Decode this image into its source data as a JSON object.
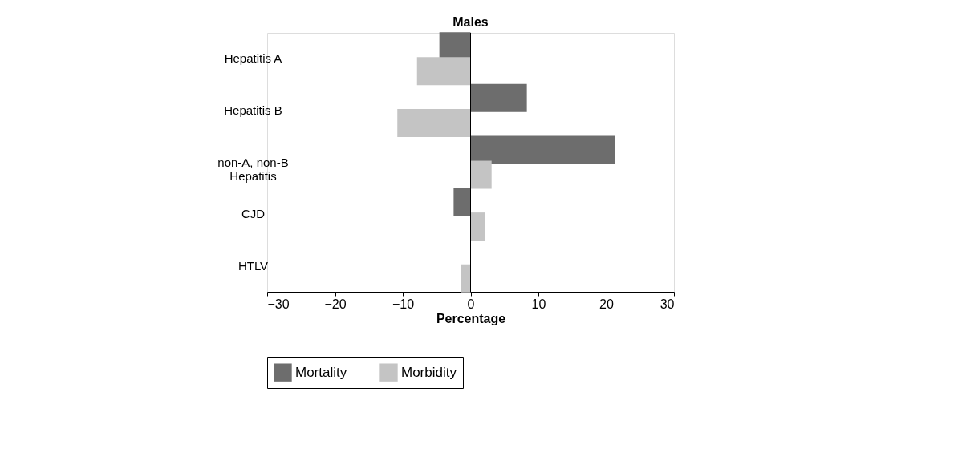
{
  "chart_data": {
    "type": "bar",
    "orientation": "horizontal",
    "title": "Males",
    "xlabel": "Percentage",
    "categories": [
      "Hepatitis A",
      "Hepatitis B",
      "non-A, non-B\nHepatitis",
      "CJD",
      "HTLV"
    ],
    "series": [
      {
        "name": "Mortality",
        "color": "#6d6d6d",
        "values": [
          -4.6,
          8.3,
          21.3,
          -2.5,
          null
        ]
      },
      {
        "name": "Morbidity",
        "color": "#c4c4c4",
        "values": [
          -7.9,
          -10.8,
          3.1,
          2.1,
          -1.4
        ]
      }
    ],
    "xlim": [
      -30,
      30
    ],
    "xticks": [
      -30,
      -20,
      -10,
      0,
      10,
      20,
      30
    ],
    "ref_lines": [
      {
        "axis": "x",
        "value": 0
      }
    ],
    "grid": false,
    "legend": "bottom"
  }
}
